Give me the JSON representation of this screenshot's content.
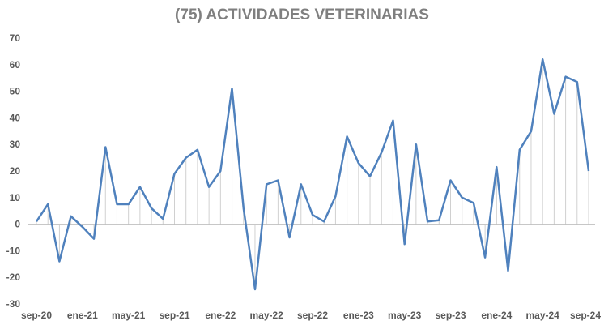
{
  "chart_data": {
    "type": "line",
    "title": "(75) ACTIVIDADES VETERINARIAS",
    "xlabel": "",
    "ylabel": "",
    "ylim": [
      -30,
      70
    ],
    "y_ticks": [
      70,
      60,
      50,
      40,
      30,
      20,
      10,
      0,
      -10,
      -20,
      -30
    ],
    "x_tick_labels": [
      "sep-20",
      "ene-21",
      "may-21",
      "sep-21",
      "ene-22",
      "may-22",
      "sep-22",
      "ene-23",
      "may-23",
      "sep-23",
      "ene-24",
      "may-24",
      "sep-24"
    ],
    "grid": false,
    "drop_lines": true,
    "legend": "none",
    "line_color": "#4f81bd",
    "series": [
      {
        "x": [
          "sep-20",
          "oct-20",
          "nov-20",
          "dic-20",
          "ene-21",
          "feb-21",
          "mar-21",
          "abr-21",
          "may-21",
          "jun-21",
          "jul-21",
          "ago-21",
          "sep-21",
          "oct-21",
          "nov-21",
          "dic-21",
          "ene-22",
          "feb-22",
          "mar-22",
          "abr-22",
          "may-22",
          "jun-22",
          "jul-22",
          "ago-22",
          "sep-22",
          "oct-22",
          "nov-22",
          "dic-22",
          "ene-23",
          "feb-23",
          "mar-23",
          "abr-23",
          "may-23",
          "jun-23",
          "jul-23",
          "ago-23",
          "sep-23",
          "oct-23",
          "nov-23",
          "dic-23",
          "ene-24",
          "feb-24",
          "mar-24",
          "abr-24",
          "may-24",
          "jun-24",
          "jul-24",
          "ago-24",
          "sep-24"
        ],
        "values": [
          1,
          7.5,
          -14,
          3,
          -1,
          -5.5,
          29,
          7.5,
          7.5,
          14,
          6,
          2,
          19,
          25,
          28,
          14,
          20,
          51,
          6,
          -24.5,
          15,
          16.5,
          -5,
          15,
          3.5,
          1,
          10.5,
          33,
          23,
          18,
          27,
          39,
          -7.5,
          30,
          1,
          1.5,
          16.5,
          10,
          8,
          -12.5,
          21.5,
          -17.5,
          28,
          35,
          62,
          41.5,
          55.5,
          53.5,
          20
        ]
      }
    ]
  }
}
